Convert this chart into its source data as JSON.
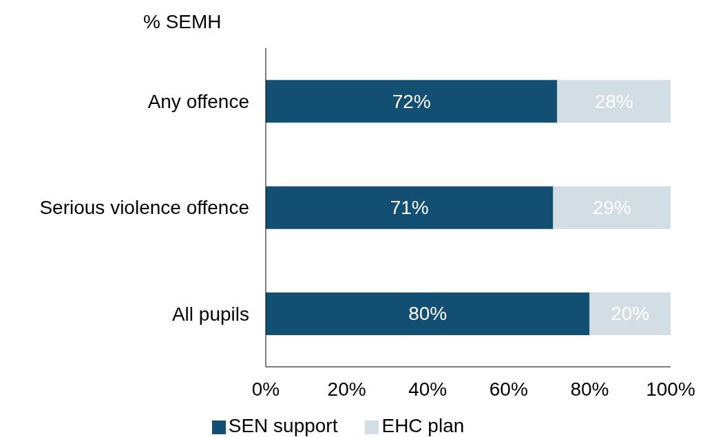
{
  "chart_data": {
    "type": "bar",
    "orientation": "horizontal",
    "stacked": true,
    "title": "% SEMH",
    "categories": [
      "Any offence",
      "Serious violence offence",
      "All pupils"
    ],
    "series": [
      {
        "name": "SEN support",
        "color": "#124f73",
        "values": [
          72,
          71,
          80
        ],
        "value_labels": [
          "72%",
          "71%",
          "80%"
        ]
      },
      {
        "name": "EHC plan",
        "color": "#d2dde4",
        "values": [
          28,
          29,
          20
        ],
        "value_labels": [
          "28%",
          "29%",
          "20%"
        ]
      }
    ],
    "xlim": [
      0,
      100
    ],
    "xticks": [
      {
        "value": 0,
        "label": "0%"
      },
      {
        "value": 20,
        "label": "20%"
      },
      {
        "value": 40,
        "label": "40%"
      },
      {
        "value": 60,
        "label": "60%"
      },
      {
        "value": 80,
        "label": "80%"
      },
      {
        "value": 100,
        "label": "100%"
      }
    ],
    "grid": false,
    "legend": "bottom"
  }
}
